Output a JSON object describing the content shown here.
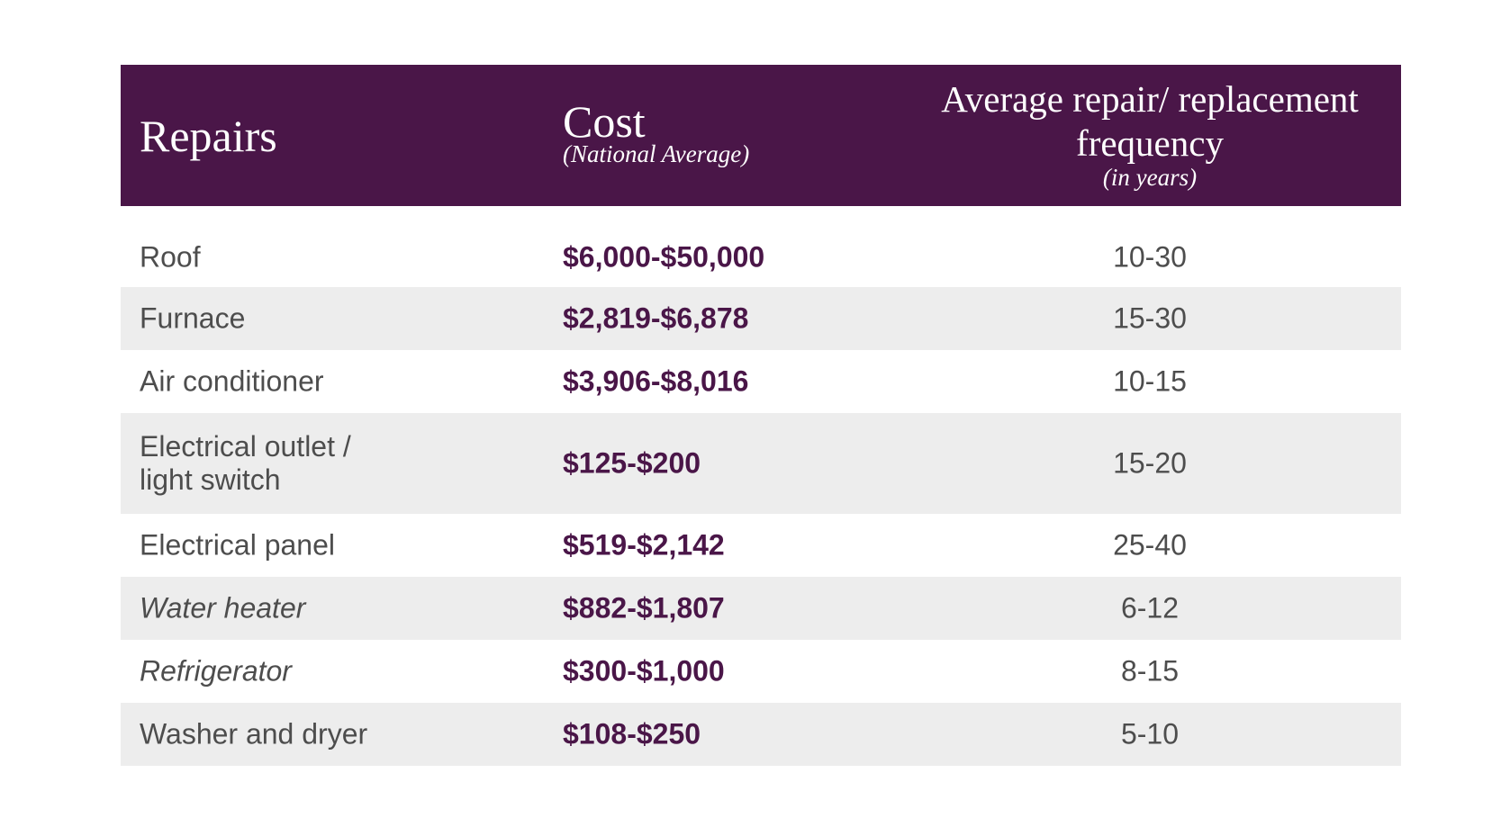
{
  "table": {
    "header": [
      "Repairs",
      "Cost",
      "(National Average)",
      "Average repair/ replacement frequency",
      "(in years)"
    ],
    "rows": [
      [
        "Roof",
        "$6,000-$50,000",
        "10-30"
      ],
      [
        "Furnace",
        "$2,819-$6,878",
        "15-30"
      ],
      [
        "Air conditioner",
        "$3,906-$8,016",
        "10-15"
      ],
      [
        "Electrical outlet / light switch",
        "$125-$200",
        "15-20"
      ],
      [
        "Electrical panel",
        "$519-$2,142",
        "25-40"
      ],
      [
        "Water heater",
        "$882-$1,807",
        "6-12"
      ],
      [
        "Refrigerator",
        "$300-$1,000",
        "8-15"
      ],
      [
        "Washer and dryer",
        "$108-$250",
        "5-10"
      ]
    ]
  }
}
